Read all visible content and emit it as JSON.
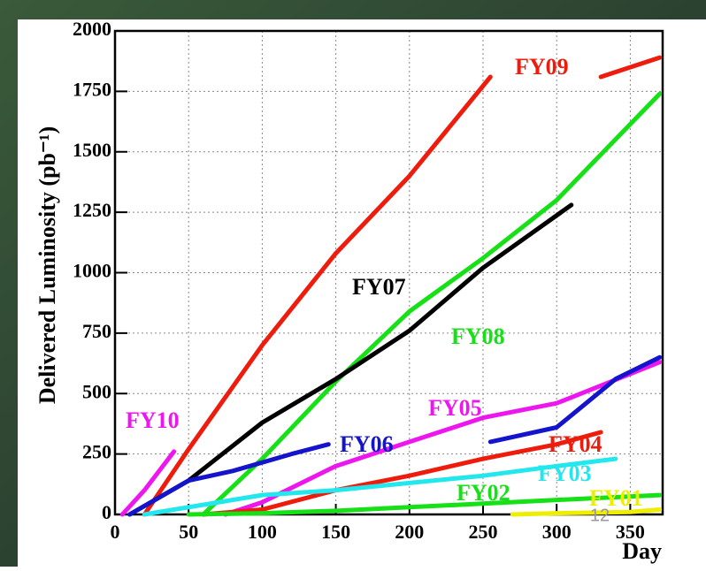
{
  "page_number": "12",
  "chart_data": {
    "type": "line",
    "y_label": "Delivered Luminosity (pb⁻¹)",
    "x_label": "Day",
    "xlim": [
      0,
      372
    ],
    "ylim": [
      0,
      2000
    ],
    "xticks": [
      0,
      50,
      100,
      150,
      200,
      250,
      300,
      350
    ],
    "yticks": [
      0,
      250,
      500,
      750,
      1000,
      1250,
      1500,
      1750,
      2000
    ],
    "grid": true,
    "series": [
      {
        "name": "FY09",
        "color": "#ee1c0c",
        "x": [
          20,
          50,
          100,
          150,
          200,
          255,
          300,
          330,
          370
        ],
        "values": [
          0,
          270,
          700,
          1080,
          1400,
          1810,
          null,
          1810,
          1890
        ]
      },
      {
        "name": "FY08",
        "color": "#16e016",
        "x": [
          60,
          100,
          150,
          200,
          250,
          300,
          370
        ],
        "values": [
          0,
          230,
          550,
          840,
          1060,
          1300,
          1740
        ]
      },
      {
        "name": "FY07",
        "color": "#000000",
        "x": [
          10,
          50,
          100,
          150,
          200,
          250,
          310
        ],
        "values": [
          0,
          140,
          380,
          560,
          760,
          1020,
          1280
        ]
      },
      {
        "name": "FY10",
        "color": "#ee16ee",
        "x": [
          5,
          20,
          40
        ],
        "values": [
          0,
          100,
          260
        ]
      },
      {
        "name": "FY05",
        "color": "#ee16ee",
        "x": [
          75,
          100,
          150,
          200,
          250,
          300,
          370
        ],
        "values": [
          0,
          50,
          200,
          300,
          400,
          460,
          630
        ]
      },
      {
        "name": "FY06",
        "color": "#1414cc",
        "x": [
          10,
          50,
          80,
          120,
          145,
          200,
          255,
          300,
          340,
          370
        ],
        "values": [
          0,
          140,
          180,
          250,
          290,
          null,
          300,
          360,
          560,
          650
        ]
      },
      {
        "name": "FY04",
        "color": "#ee1c0c",
        "x": [
          60,
          100,
          150,
          200,
          250,
          300,
          330
        ],
        "values": [
          0,
          20,
          100,
          160,
          230,
          290,
          340
        ]
      },
      {
        "name": "FY03",
        "color": "#22e8ee",
        "x": [
          20,
          100,
          150,
          200,
          250,
          300,
          340
        ],
        "values": [
          0,
          80,
          100,
          130,
          160,
          200,
          230
        ]
      },
      {
        "name": "FY02",
        "color": "#16e016",
        "x": [
          50,
          100,
          150,
          200,
          250,
          300,
          370
        ],
        "values": [
          0,
          5,
          15,
          30,
          45,
          60,
          80
        ]
      },
      {
        "name": "FY01",
        "color": "#eeee00",
        "x": [
          270,
          300,
          350,
          370
        ],
        "values": [
          0,
          5,
          10,
          20
        ]
      }
    ]
  }
}
